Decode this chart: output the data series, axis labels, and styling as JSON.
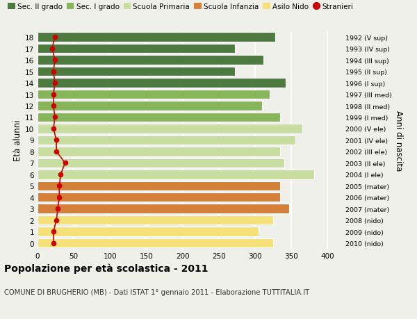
{
  "ages": [
    0,
    1,
    2,
    3,
    4,
    5,
    6,
    7,
    8,
    9,
    10,
    11,
    12,
    13,
    14,
    15,
    16,
    17,
    18
  ],
  "bar_values": [
    325,
    305,
    325,
    347,
    335,
    335,
    382,
    340,
    335,
    356,
    365,
    335,
    310,
    320,
    342,
    272,
    312,
    272,
    328
  ],
  "stranieri": [
    22,
    22,
    26,
    28,
    30,
    30,
    32,
    38,
    26,
    26,
    22,
    24,
    22,
    22,
    24,
    22,
    24,
    20,
    24
  ],
  "right_labels": [
    "2010 (nido)",
    "2009 (nido)",
    "2008 (nido)",
    "2007 (mater)",
    "2006 (mater)",
    "2005 (mater)",
    "2004 (I ele)",
    "2003 (II ele)",
    "2002 (III ele)",
    "2001 (IV ele)",
    "2000 (V ele)",
    "1999 (I med)",
    "1998 (II med)",
    "1997 (III med)",
    "1996 (I sup)",
    "1995 (II sup)",
    "1994 (III sup)",
    "1993 (IV sup)",
    "1992 (V sup)"
  ],
  "bar_colors": [
    "#f5e07a",
    "#f5e07a",
    "#f5e07a",
    "#d4803a",
    "#d4803a",
    "#d4803a",
    "#c8dda0",
    "#c8dda0",
    "#c8dda0",
    "#c8dda0",
    "#c8dda0",
    "#88b55a",
    "#88b55a",
    "#88b55a",
    "#4d7a3e",
    "#4d7a3e",
    "#4d7a3e",
    "#4d7a3e",
    "#4d7a3e"
  ],
  "legend_labels": [
    "Sec. II grado",
    "Sec. I grado",
    "Scuola Primaria",
    "Scuola Infanzia",
    "Asilo Nido",
    "Stranieri"
  ],
  "legend_colors": [
    "#4d7a3e",
    "#88b55a",
    "#c8dda0",
    "#d4803a",
    "#f5e07a",
    "#cc0000"
  ],
  "ylabel": "Età alunni",
  "right_ylabel": "Anni di nascita",
  "title": "Popolazione per età scolastica - 2011",
  "subtitle": "COMUNE DI BRUGHERIO (MB) - Dati ISTAT 1° gennaio 2011 - Elaborazione TUTTITALIA.IT",
  "xlim": [
    0,
    420
  ],
  "xticks": [
    0,
    50,
    100,
    150,
    200,
    250,
    300,
    350,
    400
  ],
  "bg_color": "#f0f0eb",
  "plot_bg": "#f0f0eb",
  "grid_color": "#ffffff",
  "stranieri_color": "#cc0000",
  "bar_edge": "#ffffff"
}
